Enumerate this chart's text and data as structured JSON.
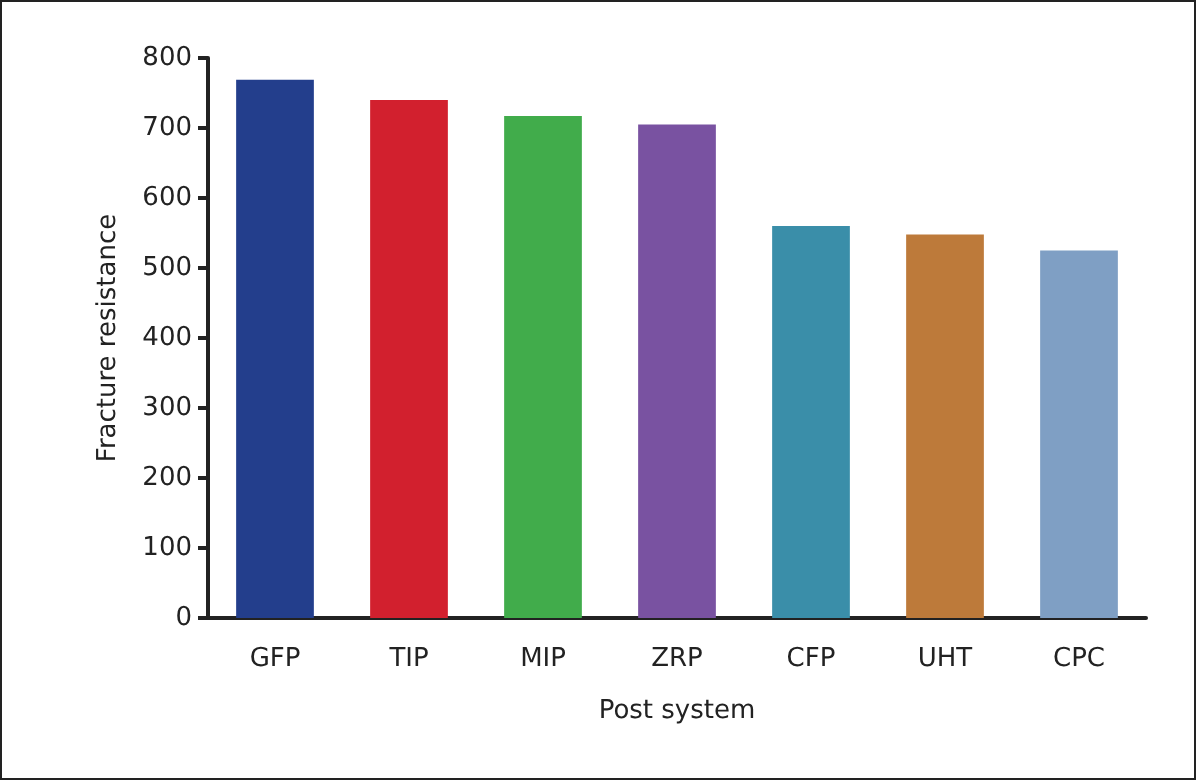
{
  "chart_data": {
    "type": "bar",
    "xlabel": "Post system",
    "ylabel": "Fracture resistance",
    "categories": [
      "GFP",
      "TIP",
      "MIP",
      "ZRP",
      "CFP",
      "UHT",
      "CPC"
    ],
    "values": [
      769,
      740,
      717,
      705,
      560,
      548,
      525
    ],
    "colors": [
      "#233e8c",
      "#d2202e",
      "#41ac4b",
      "#7952a1",
      "#3a8ea9",
      "#bd7a3a",
      "#7f9fc4"
    ],
    "ylim": [
      0,
      800
    ],
    "yticks": [
      0,
      100,
      200,
      300,
      400,
      500,
      600,
      700,
      800
    ],
    "grid": false
  }
}
